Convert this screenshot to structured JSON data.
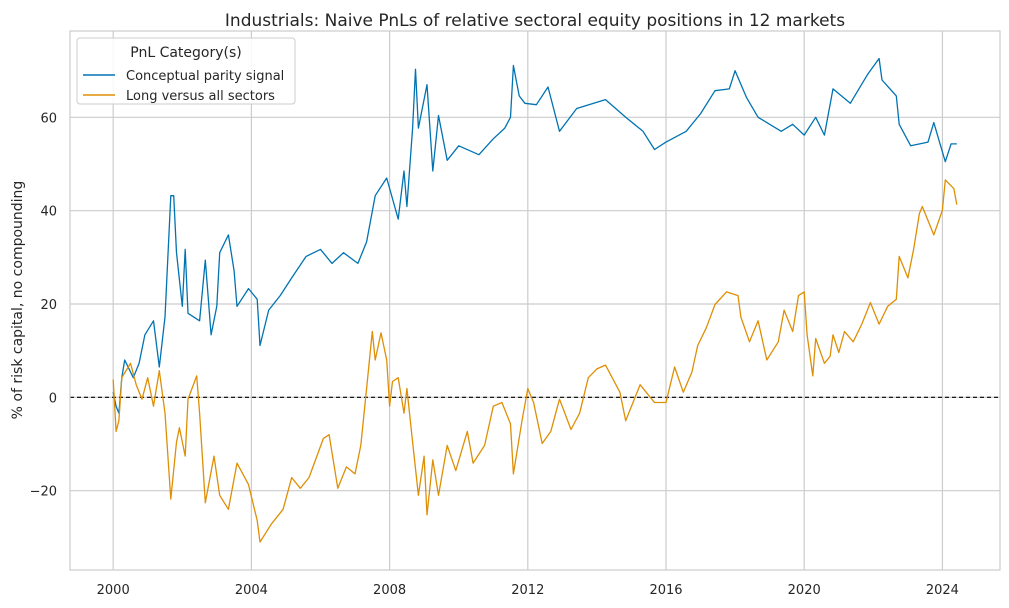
{
  "chart_data": {
    "type": "line",
    "title": "Industrials: Naive PnLs of relative sectoral equity positions in 12 markets",
    "xlabel": "",
    "ylabel": "% of risk capital, no compounding",
    "xlim": [
      "1998-10",
      "2025-09"
    ],
    "ylim": [
      -37,
      78.5
    ],
    "xticks": [
      "2000",
      "2004",
      "2008",
      "2012",
      "2016",
      "2020",
      "2024"
    ],
    "yticks": [
      -20,
      0,
      20,
      40,
      60
    ],
    "grid": true,
    "reference_line": {
      "y": 0,
      "style": "dashed",
      "color": "#000000"
    },
    "legend": {
      "title": "PnL Category(s)",
      "placement": "top-left"
    },
    "series": [
      {
        "name": "Conceptual parity signal",
        "color": "#0173b2",
        "points": [
          [
            "2000-01",
            1.1
          ],
          [
            "2000-02",
            -1.9
          ],
          [
            "2000-03",
            -3.4
          ],
          [
            "2000-04",
            4.2
          ],
          [
            "2000-05",
            8.0
          ],
          [
            "2000-08",
            4.2
          ],
          [
            "2000-10",
            7.3
          ],
          [
            "2000-12",
            13.4
          ],
          [
            "2001-03",
            16.4
          ],
          [
            "2001-05",
            6.5
          ],
          [
            "2001-07",
            17.2
          ],
          [
            "2001-09",
            43.2
          ],
          [
            "2001-10",
            43.2
          ],
          [
            "2001-11",
            31.0
          ],
          [
            "2002-01",
            19.5
          ],
          [
            "2002-02",
            31.7
          ],
          [
            "2002-03",
            18.0
          ],
          [
            "2002-07",
            16.4
          ],
          [
            "2002-09",
            29.4
          ],
          [
            "2002-11",
            13.4
          ],
          [
            "2003-01",
            19.5
          ],
          [
            "2003-02",
            31.0
          ],
          [
            "2003-05",
            34.8
          ],
          [
            "2003-07",
            27.1
          ],
          [
            "2003-08",
            19.5
          ],
          [
            "2003-12",
            23.3
          ],
          [
            "2004-03",
            21.0
          ],
          [
            "2004-04",
            11.1
          ],
          [
            "2004-07",
            18.7
          ],
          [
            "2004-11",
            21.8
          ],
          [
            "2005-03",
            25.6
          ],
          [
            "2005-08",
            30.2
          ],
          [
            "2006-01",
            31.7
          ],
          [
            "2006-05",
            28.7
          ],
          [
            "2006-09",
            31.0
          ],
          [
            "2007-02",
            28.7
          ],
          [
            "2007-05",
            33.3
          ],
          [
            "2007-08",
            43.2
          ],
          [
            "2007-12",
            47.0
          ],
          [
            "2008-04",
            38.2
          ],
          [
            "2008-06",
            48.5
          ],
          [
            "2008-07",
            40.9
          ],
          [
            "2008-09",
            57.7
          ],
          [
            "2008-10",
            70.3
          ],
          [
            "2008-11",
            57.7
          ],
          [
            "2009-02",
            67.0
          ],
          [
            "2009-04",
            48.5
          ],
          [
            "2009-06",
            60.4
          ],
          [
            "2009-09",
            50.8
          ],
          [
            "2010-01",
            53.9
          ],
          [
            "2010-08",
            52.0
          ],
          [
            "2011-01",
            55.4
          ],
          [
            "2011-05",
            57.7
          ],
          [
            "2011-07",
            60.0
          ],
          [
            "2011-08",
            71.1
          ],
          [
            "2011-10",
            64.6
          ],
          [
            "2011-12",
            63.0
          ],
          [
            "2012-04",
            62.7
          ],
          [
            "2012-08",
            66.5
          ],
          [
            "2012-12",
            57.0
          ],
          [
            "2013-06",
            61.9
          ],
          [
            "2014-04",
            63.8
          ],
          [
            "2014-11",
            60.0
          ],
          [
            "2015-05",
            57.0
          ],
          [
            "2015-09",
            53.1
          ],
          [
            "2016-01",
            54.7
          ],
          [
            "2016-08",
            57.0
          ],
          [
            "2017-01",
            60.8
          ],
          [
            "2017-06",
            65.7
          ],
          [
            "2017-11",
            66.1
          ],
          [
            "2018-01",
            70.0
          ],
          [
            "2018-05",
            64.2
          ],
          [
            "2018-09",
            60.0
          ],
          [
            "2019-05",
            57.0
          ],
          [
            "2019-09",
            58.5
          ],
          [
            "2020-01",
            56.2
          ],
          [
            "2020-05",
            60.0
          ],
          [
            "2020-08",
            56.2
          ],
          [
            "2020-11",
            66.1
          ],
          [
            "2021-05",
            63.0
          ],
          [
            "2021-11",
            69.2
          ],
          [
            "2022-03",
            72.6
          ],
          [
            "2022-04",
            68.0
          ],
          [
            "2022-09",
            64.6
          ],
          [
            "2022-10",
            58.5
          ],
          [
            "2023-02",
            53.9
          ],
          [
            "2023-08",
            54.7
          ],
          [
            "2023-10",
            58.9
          ],
          [
            "2023-12",
            54.7
          ],
          [
            "2024-02",
            50.5
          ],
          [
            "2024-04",
            54.3
          ],
          [
            "2024-06",
            54.3
          ]
        ]
      },
      {
        "name": "Long versus all sectors",
        "color": "#de8f05",
        "points": [
          [
            "2000-01",
            3.8
          ],
          [
            "2000-02",
            -7.3
          ],
          [
            "2000-03",
            -5.0
          ],
          [
            "2000-04",
            4.2
          ],
          [
            "2000-07",
            7.3
          ],
          [
            "2000-09",
            2.7
          ],
          [
            "2000-11",
            -0.4
          ],
          [
            "2001-01",
            4.2
          ],
          [
            "2001-03",
            -1.9
          ],
          [
            "2001-05",
            5.7
          ],
          [
            "2001-07",
            -3.4
          ],
          [
            "2001-09",
            -21.8
          ],
          [
            "2001-11",
            -9.6
          ],
          [
            "2001-12",
            -6.5
          ],
          [
            "2002-02",
            -12.6
          ],
          [
            "2002-03",
            -0.4
          ],
          [
            "2002-06",
            4.6
          ],
          [
            "2002-07",
            -3.4
          ],
          [
            "2002-09",
            -22.6
          ],
          [
            "2002-12",
            -12.6
          ],
          [
            "2003-02",
            -21.0
          ],
          [
            "2003-05",
            -24.0
          ],
          [
            "2003-08",
            -14.1
          ],
          [
            "2003-12",
            -18.7
          ],
          [
            "2004-03",
            -26.4
          ],
          [
            "2004-04",
            -31.0
          ],
          [
            "2004-08",
            -27.1
          ],
          [
            "2004-12",
            -24.0
          ],
          [
            "2005-03",
            -17.2
          ],
          [
            "2005-06",
            -19.5
          ],
          [
            "2005-09",
            -17.2
          ],
          [
            "2006-02",
            -8.8
          ],
          [
            "2006-04",
            -8.0
          ],
          [
            "2006-07",
            -19.5
          ],
          [
            "2006-10",
            -14.9
          ],
          [
            "2007-01",
            -16.4
          ],
          [
            "2007-03",
            -10.3
          ],
          [
            "2007-05",
            1.9
          ],
          [
            "2007-07",
            14.1
          ],
          [
            "2007-08",
            8.0
          ],
          [
            "2007-10",
            13.8
          ],
          [
            "2007-12",
            8.0
          ],
          [
            "2008-01",
            -1.9
          ],
          [
            "2008-02",
            3.4
          ],
          [
            "2008-04",
            4.2
          ],
          [
            "2008-06",
            -3.4
          ],
          [
            "2008-07",
            1.9
          ],
          [
            "2008-09",
            -9.6
          ],
          [
            "2008-11",
            -21.0
          ],
          [
            "2009-01",
            -12.6
          ],
          [
            "2009-02",
            -25.2
          ],
          [
            "2009-04",
            -13.4
          ],
          [
            "2009-06",
            -21.0
          ],
          [
            "2009-09",
            -10.3
          ],
          [
            "2009-12",
            -15.7
          ],
          [
            "2010-04",
            -7.3
          ],
          [
            "2010-06",
            -14.1
          ],
          [
            "2010-10",
            -10.3
          ],
          [
            "2011-01",
            -1.9
          ],
          [
            "2011-04",
            -1.1
          ],
          [
            "2011-07",
            -5.7
          ],
          [
            "2011-08",
            -16.4
          ],
          [
            "2011-11",
            -5.0
          ],
          [
            "2012-01",
            1.9
          ],
          [
            "2012-03",
            -1.1
          ],
          [
            "2012-06",
            -9.9
          ],
          [
            "2012-09",
            -7.3
          ],
          [
            "2012-12",
            -0.4
          ],
          [
            "2013-04",
            -6.9
          ],
          [
            "2013-07",
            -3.4
          ],
          [
            "2013-10",
            4.2
          ],
          [
            "2014-01",
            6.1
          ],
          [
            "2014-04",
            6.9
          ],
          [
            "2014-09",
            1.1
          ],
          [
            "2014-11",
            -5.0
          ],
          [
            "2015-04",
            2.7
          ],
          [
            "2015-09",
            -1.1
          ],
          [
            "2016-01",
            -1.1
          ],
          [
            "2016-04",
            6.5
          ],
          [
            "2016-07",
            1.1
          ],
          [
            "2016-10",
            5.4
          ],
          [
            "2016-12",
            11.1
          ],
          [
            "2017-03",
            14.9
          ],
          [
            "2017-06",
            19.9
          ],
          [
            "2017-10",
            22.6
          ],
          [
            "2018-02",
            21.8
          ],
          [
            "2018-03",
            17.2
          ],
          [
            "2018-06",
            11.9
          ],
          [
            "2018-09",
            16.4
          ],
          [
            "2018-12",
            8.0
          ],
          [
            "2019-04",
            11.9
          ],
          [
            "2019-06",
            18.7
          ],
          [
            "2019-09",
            14.1
          ],
          [
            "2019-11",
            21.8
          ],
          [
            "2020-01",
            22.6
          ],
          [
            "2020-02",
            13.4
          ],
          [
            "2020-04",
            4.6
          ],
          [
            "2020-05",
            12.6
          ],
          [
            "2020-08",
            7.3
          ],
          [
            "2020-10",
            8.8
          ],
          [
            "2020-11",
            13.4
          ],
          [
            "2021-01",
            9.6
          ],
          [
            "2021-03",
            14.1
          ],
          [
            "2021-06",
            11.9
          ],
          [
            "2021-09",
            15.7
          ],
          [
            "2021-12",
            20.3
          ],
          [
            "2022-03",
            15.7
          ],
          [
            "2022-06",
            19.5
          ],
          [
            "2022-09",
            21.0
          ],
          [
            "2022-10",
            30.2
          ],
          [
            "2023-01",
            25.6
          ],
          [
            "2023-03",
            31.7
          ],
          [
            "2023-05",
            39.4
          ],
          [
            "2023-06",
            40.9
          ],
          [
            "2023-10",
            34.8
          ],
          [
            "2024-01",
            40.1
          ],
          [
            "2024-02",
            46.6
          ],
          [
            "2024-05",
            44.7
          ],
          [
            "2024-06",
            41.3
          ]
        ]
      }
    ]
  }
}
